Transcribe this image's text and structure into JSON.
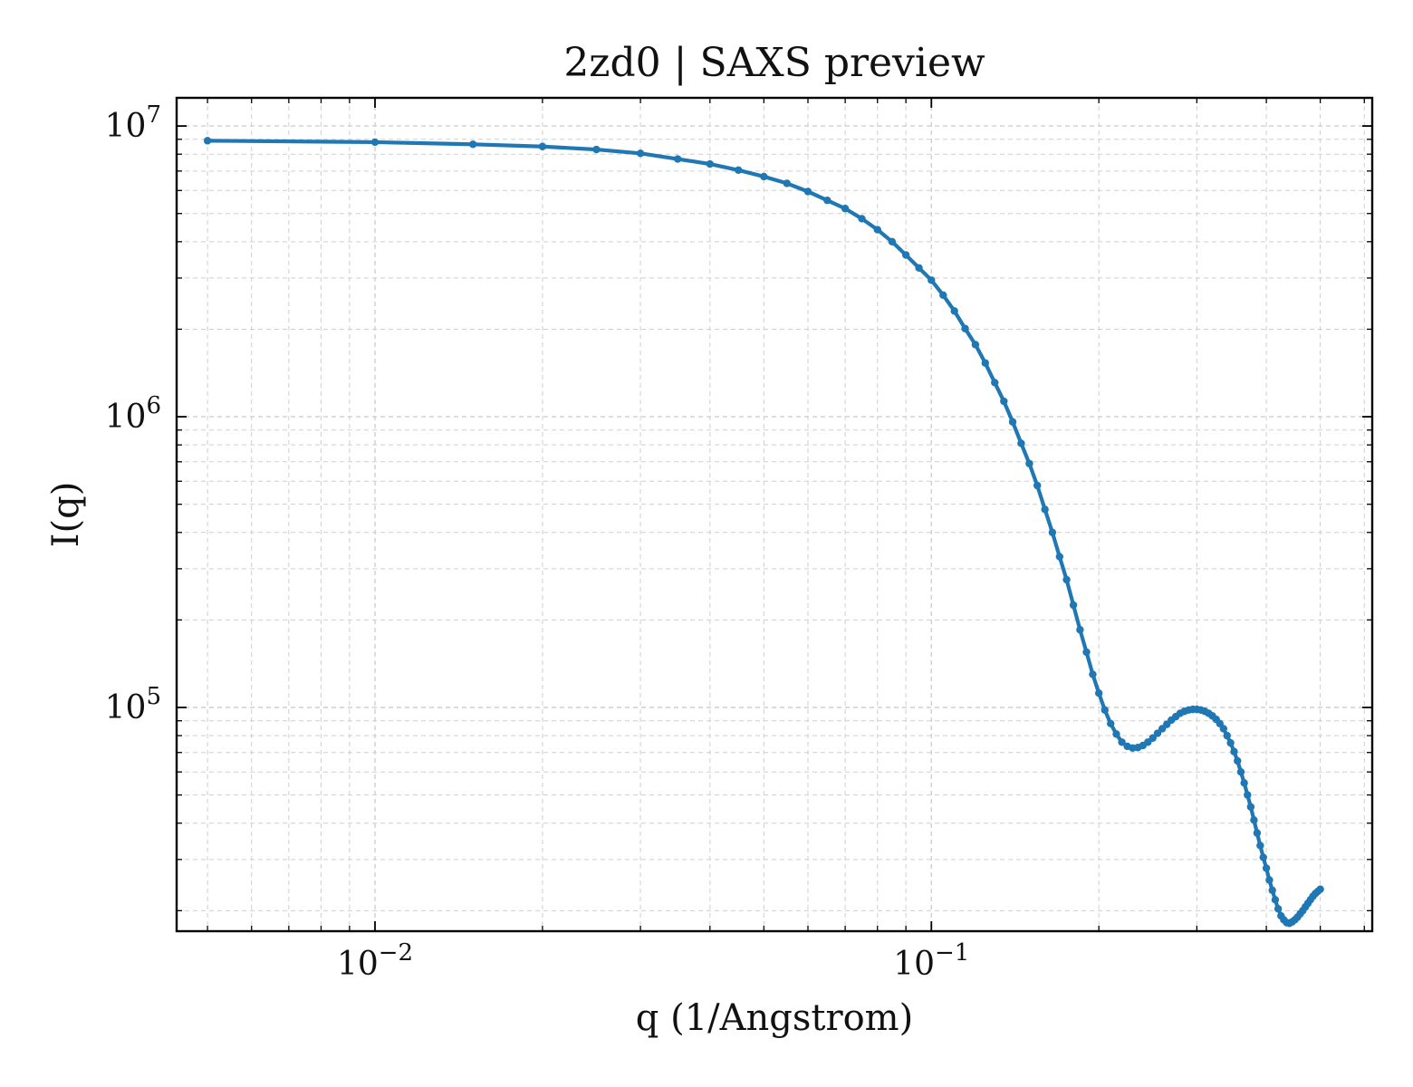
{
  "chart_data": {
    "type": "line",
    "title": "2zd0 | SAXS preview",
    "xlabel": "q (1/Angstrom)",
    "ylabel": "I(q)",
    "xscale": "log",
    "yscale": "log",
    "xlim": [
      0.0044,
      0.62
    ],
    "ylim": [
      17000,
      12500000
    ],
    "grid": true,
    "x_ticks": [
      {
        "value": 0.01,
        "base": "10",
        "exp": "−2"
      },
      {
        "value": 0.1,
        "base": "10",
        "exp": "−1"
      }
    ],
    "y_ticks": [
      {
        "value": 100000,
        "base": "10",
        "exp": "5"
      },
      {
        "value": 1000000,
        "base": "10",
        "exp": "6"
      },
      {
        "value": 10000000,
        "base": "10",
        "exp": "7"
      }
    ],
    "series": [
      {
        "color": "#1f77b4",
        "x": [
          0.005,
          0.01,
          0.015,
          0.02,
          0.025,
          0.03,
          0.035,
          0.04,
          0.045,
          0.05,
          0.055,
          0.06,
          0.065,
          0.07,
          0.075,
          0.08,
          0.085,
          0.09,
          0.095,
          0.1,
          0.105,
          0.11,
          0.115,
          0.12,
          0.125,
          0.13,
          0.135,
          0.14,
          0.145,
          0.15,
          0.155,
          0.16,
          0.165,
          0.17,
          0.175,
          0.18,
          0.185,
          0.19,
          0.195,
          0.2,
          0.205,
          0.21,
          0.215,
          0.22,
          0.225,
          0.23,
          0.235,
          0.24,
          0.245,
          0.25,
          0.255,
          0.26,
          0.265,
          0.27,
          0.275,
          0.28,
          0.285,
          0.29,
          0.295,
          0.3,
          0.305,
          0.31,
          0.315,
          0.32,
          0.325,
          0.33,
          0.335,
          0.34,
          0.345,
          0.35,
          0.355,
          0.36,
          0.365,
          0.37,
          0.375,
          0.38,
          0.385,
          0.39,
          0.395,
          0.4,
          0.405,
          0.41,
          0.415,
          0.42,
          0.425,
          0.43,
          0.435,
          0.44,
          0.445,
          0.45,
          0.455,
          0.46,
          0.465,
          0.47,
          0.475,
          0.48,
          0.485,
          0.49,
          0.495,
          0.5
        ],
        "y": [
          8900000,
          8800000,
          8650000,
          8500000,
          8300000,
          8050000,
          7700000,
          7400000,
          7050000,
          6700000,
          6350000,
          5950000,
          5550000,
          5200000,
          4800000,
          4400000,
          4000000,
          3600000,
          3250000,
          2950000,
          2620000,
          2310000,
          2010000,
          1770000,
          1530000,
          1310000,
          1130000,
          960000,
          810000,
          690000,
          580000,
          480000,
          400000,
          330000,
          275000,
          225000,
          185000,
          155000,
          130000,
          112000,
          98000,
          88000,
          81000,
          76000,
          73500,
          72500,
          72800,
          74000,
          76000,
          78500,
          81500,
          84500,
          87500,
          90500,
          93000,
          95500,
          97000,
          98000,
          98500,
          98500,
          98000,
          97000,
          95500,
          93500,
          91000,
          88000,
          84500,
          80000,
          75500,
          70500,
          65500,
          60000,
          55000,
          50000,
          45500,
          41000,
          37000,
          33500,
          30500,
          28000,
          25500,
          23500,
          21800,
          20300,
          19200,
          18600,
          18200,
          18100,
          18300,
          18600,
          19000,
          19500,
          20000,
          20600,
          21200,
          21800,
          22400,
          22900,
          23300,
          23700
        ]
      }
    ]
  }
}
